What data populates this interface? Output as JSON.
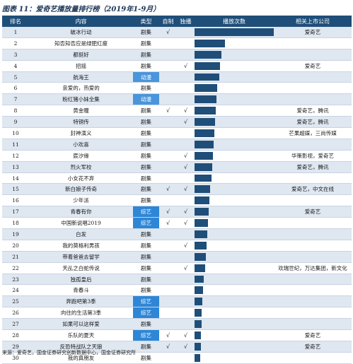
{
  "title": "图表 11：爱奇艺播放量排行榜（2019年1-9月）",
  "headers": {
    "rank": "排名",
    "content": "内容",
    "type": "类型",
    "self": "自制",
    "exclusive": "独播",
    "plays": "播放次数",
    "related": "相关上市公司"
  },
  "check_symbol": "√",
  "rows": [
    {
      "rank": "1",
      "content": "破冰行动",
      "type": "剧集",
      "self": "√",
      "exclusive": "",
      "plays": 1.0,
      "related": "爱奇艺"
    },
    {
      "rank": "2",
      "content": "知否知否应是绿肥红瘦",
      "type": "剧集",
      "self": "",
      "exclusive": "",
      "plays": 0.38,
      "related": ""
    },
    {
      "rank": "3",
      "content": "都挺好",
      "type": "剧集",
      "self": "",
      "exclusive": "",
      "plays": 0.34,
      "related": ""
    },
    {
      "rank": "4",
      "content": "招摇",
      "type": "剧集",
      "self": "",
      "exclusive": "√",
      "plays": 0.32,
      "related": "爱奇艺"
    },
    {
      "rank": "5",
      "content": "航海王",
      "type": "动漫",
      "self": "",
      "exclusive": "",
      "plays": 0.31,
      "related": ""
    },
    {
      "rank": "6",
      "content": "亲爱的，热爱的",
      "type": "剧集",
      "self": "",
      "exclusive": "",
      "plays": 0.29,
      "related": ""
    },
    {
      "rank": "7",
      "content": "粉红猪小妹全集",
      "type": "动漫",
      "self": "",
      "exclusive": "",
      "plays": 0.28,
      "related": ""
    },
    {
      "rank": "8",
      "content": "黄金瞳",
      "type": "剧集",
      "self": "√",
      "exclusive": "√",
      "plays": 0.27,
      "related": "爱奇艺，腾讯"
    },
    {
      "rank": "9",
      "content": "特铜传",
      "type": "剧集",
      "self": "",
      "exclusive": "√",
      "plays": 0.26,
      "related": "爱奇艺，腾讯"
    },
    {
      "rank": "10",
      "content": "封神演义",
      "type": "剧集",
      "self": "",
      "exclusive": "",
      "plays": 0.25,
      "related": "芒果超媒，三尚传媒"
    },
    {
      "rank": "11",
      "content": "小欢喜",
      "type": "剧集",
      "self": "",
      "exclusive": "",
      "plays": 0.24,
      "related": ""
    },
    {
      "rank": "12",
      "content": "宸汐缘",
      "type": "剧集",
      "self": "",
      "exclusive": "√",
      "plays": 0.23,
      "related": "华策影视，爱奇艺"
    },
    {
      "rank": "13",
      "content": "烈火军校",
      "type": "剧集",
      "self": "",
      "exclusive": "√",
      "plays": 0.22,
      "related": "爱奇艺，腾讯"
    },
    {
      "rank": "14",
      "content": "小女花不弃",
      "type": "剧集",
      "self": "",
      "exclusive": "",
      "plays": 0.21,
      "related": ""
    },
    {
      "rank": "15",
      "content": "新白娘子传奇",
      "type": "剧集",
      "self": "√",
      "exclusive": "√",
      "plays": 0.2,
      "related": "爱奇艺，中文在线"
    },
    {
      "rank": "16",
      "content": "少年派",
      "type": "剧集",
      "self": "",
      "exclusive": "",
      "plays": 0.19,
      "related": ""
    },
    {
      "rank": "17",
      "content": "青春有你",
      "type": "综艺",
      "self": "√",
      "exclusive": "√",
      "plays": 0.18,
      "related": "爱奇艺"
    },
    {
      "rank": "18",
      "content": "中国新说唱2019",
      "type": "综艺",
      "self": "√",
      "exclusive": "√",
      "plays": 0.17,
      "related": ""
    },
    {
      "rank": "19",
      "content": "白发",
      "type": "剧集",
      "self": "",
      "exclusive": "",
      "plays": 0.16,
      "related": ""
    },
    {
      "rank": "20",
      "content": "我的莫格利男孩",
      "type": "剧集",
      "self": "",
      "exclusive": "√",
      "plays": 0.15,
      "related": ""
    },
    {
      "rank": "21",
      "content": "带着爸爸去留学",
      "type": "剧集",
      "self": "",
      "exclusive": "",
      "plays": 0.14,
      "related": ""
    },
    {
      "rank": "22",
      "content": "天乩之白蛇传说",
      "type": "剧集",
      "self": "",
      "exclusive": "√",
      "plays": 0.13,
      "related": "欢瑞世纪，万达集团，新文化"
    },
    {
      "rank": "23",
      "content": "独孤皇后",
      "type": "剧集",
      "self": "",
      "exclusive": "",
      "plays": 0.12,
      "related": ""
    },
    {
      "rank": "24",
      "content": "青春斗",
      "type": "剧集",
      "self": "",
      "exclusive": "",
      "plays": 0.11,
      "related": ""
    },
    {
      "rank": "25",
      "content": "奔跑吧第3季",
      "type": "综艺",
      "self": "",
      "exclusive": "",
      "plays": 0.1,
      "related": ""
    },
    {
      "rank": "26",
      "content": "向往的生活第3季",
      "type": "综艺",
      "self": "",
      "exclusive": "",
      "plays": 0.09,
      "related": ""
    },
    {
      "rank": "27",
      "content": "如果可以这样爱",
      "type": "剧集",
      "self": "",
      "exclusive": "",
      "plays": 0.09,
      "related": ""
    },
    {
      "rank": "28",
      "content": "乐队的夏天",
      "type": "综艺",
      "self": "√",
      "exclusive": "√",
      "plays": 0.08,
      "related": "爱奇艺"
    },
    {
      "rank": "29",
      "content": "反恐特战队之天狼",
      "type": "剧集",
      "self": "√",
      "exclusive": "√",
      "plays": 0.08,
      "related": "爱奇艺"
    },
    {
      "rank": "30",
      "content": "我的真朋友",
      "type": "剧集",
      "self": "",
      "exclusive": "",
      "plays": 0.07,
      "related": ""
    }
  ],
  "source": "来源：爱奇艺，国金证券研究创新数据中心，国金证券研究所",
  "colors": {
    "header_bg": "#1f4e79",
    "bar": "#1f4e79",
    "row_alt": "#dfe7f1",
    "highlight_type": "#2e86d6"
  }
}
